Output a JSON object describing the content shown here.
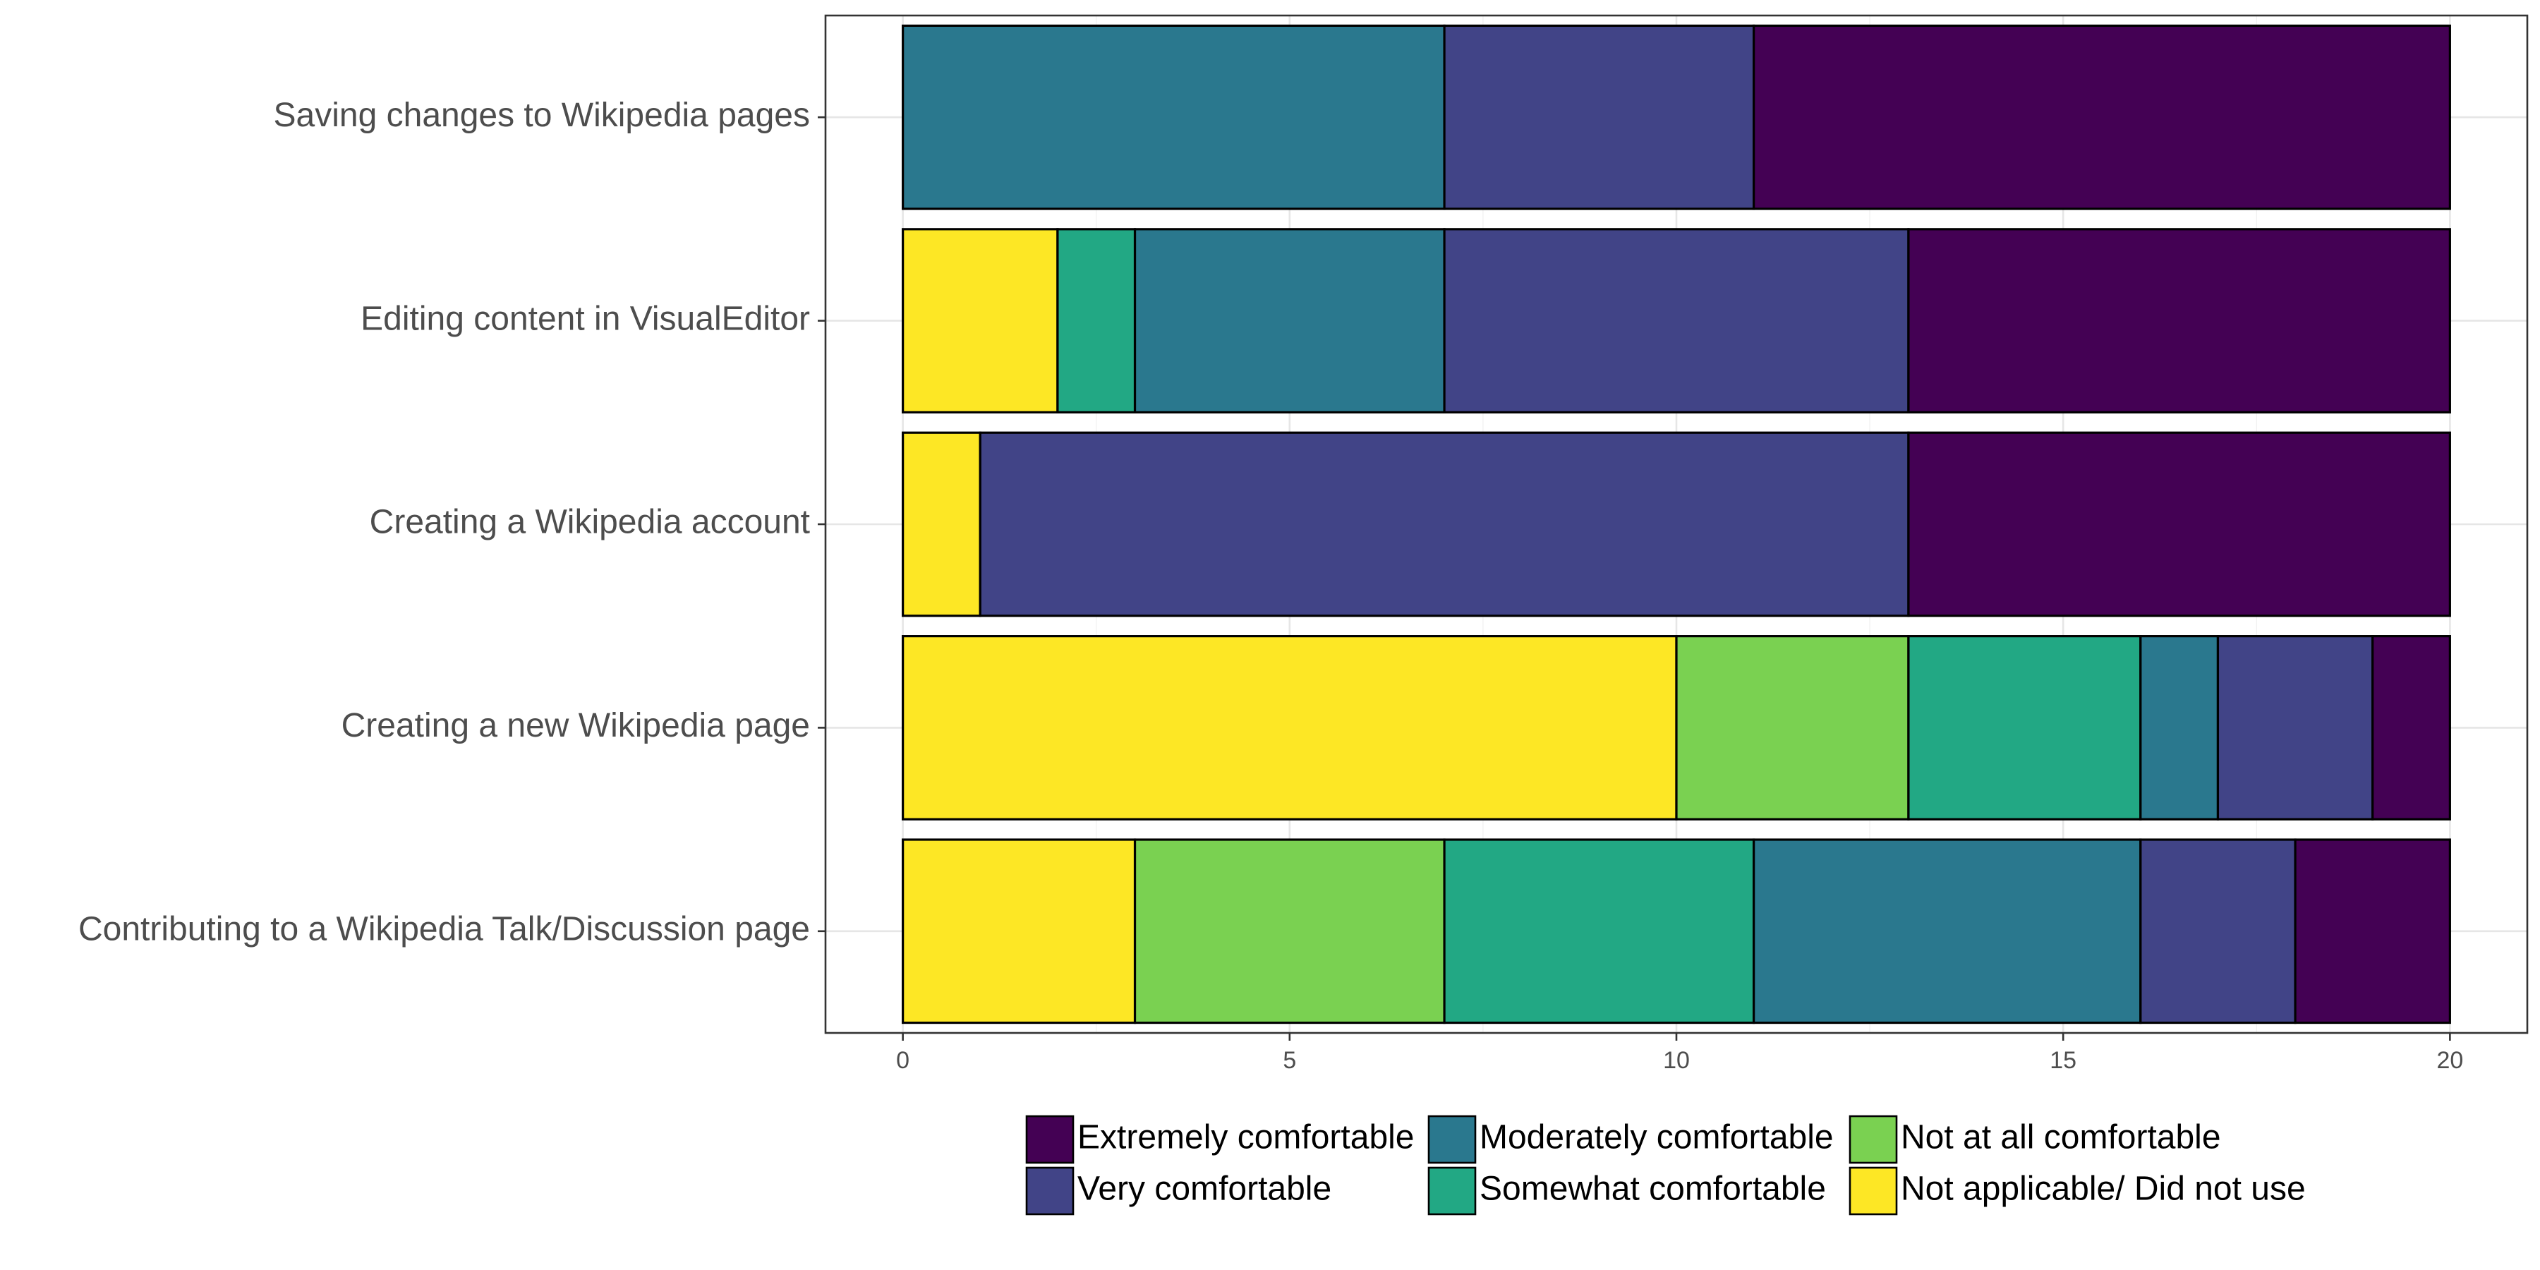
{
  "chart_data": {
    "type": "bar",
    "orientation": "horizontal",
    "stacked": true,
    "categories": [
      "Saving changes to Wikipedia pages",
      "Editing content in VisualEditor",
      "Creating a Wikipedia account",
      "Creating a new Wikipedia page",
      "Contributing to a Wikipedia Talk/Discussion page"
    ],
    "series": [
      {
        "name": "Not applicable/ Did not use",
        "color": "#FDE725",
        "values": [
          0,
          2,
          1,
          10,
          3
        ]
      },
      {
        "name": "Not at all comfortable",
        "color": "#7AD151",
        "values": [
          0,
          0,
          0,
          3,
          4
        ]
      },
      {
        "name": "Somewhat comfortable",
        "color": "#22A884",
        "values": [
          0,
          1,
          0,
          3,
          4
        ]
      },
      {
        "name": "Moderately comfortable",
        "color": "#2A788E",
        "values": [
          7,
          4,
          0,
          1,
          5
        ]
      },
      {
        "name": "Very comfortable",
        "color": "#414487",
        "values": [
          4,
          6,
          12,
          2,
          2
        ]
      },
      {
        "name": "Extremely comfortable",
        "color": "#440154",
        "values": [
          9,
          7,
          7,
          1,
          2
        ]
      }
    ],
    "legend_order": [
      "Extremely comfortable",
      "Very comfortable",
      "Moderately comfortable",
      "Somewhat comfortable",
      "Not at all comfortable",
      "Not applicable/ Did not use"
    ],
    "x_ticks": [
      "0",
      "5",
      "10",
      "15",
      "20"
    ],
    "xlim": [
      -1,
      21
    ],
    "title": "",
    "xlabel": "",
    "ylabel": "",
    "grid": true,
    "legend_position": "bottom"
  }
}
